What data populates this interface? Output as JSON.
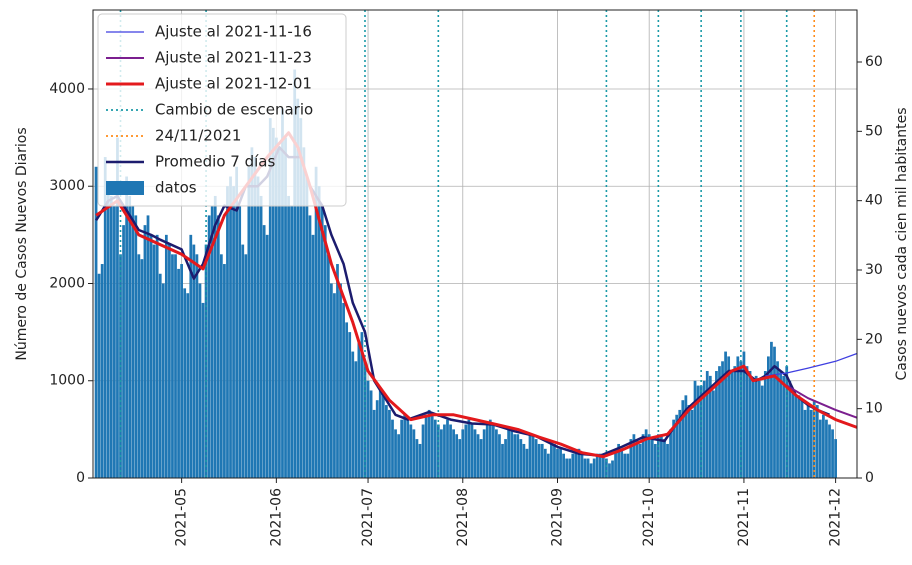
{
  "chart_data": {
    "type": "bar",
    "ylabel": "Número de Casos Nuevos Diarios",
    "y2label": "Casos nuevos cada cien mil habitantes",
    "xlim": [
      "2021-04-02",
      "2021-12-08"
    ],
    "ylim": [
      0,
      4812
    ],
    "y2lim": [
      0,
      67.5
    ],
    "yticks": [
      0,
      1000,
      2000,
      3000,
      4000
    ],
    "y2ticks": [
      0,
      10,
      20,
      30,
      40,
      50,
      60
    ],
    "xticks": [
      {
        "value": "2021-05-01",
        "label": "2021-05"
      },
      {
        "value": "2021-06-01",
        "label": "2021-06"
      },
      {
        "value": "2021-07-01",
        "label": "2021-07"
      },
      {
        "value": "2021-08-01",
        "label": "2021-08"
      },
      {
        "value": "2021-09-01",
        "label": "2021-09"
      },
      {
        "value": "2021-10-01",
        "label": "2021-10"
      },
      {
        "value": "2021-11-01",
        "label": "2021-11"
      },
      {
        "value": "2021-12-01",
        "label": "2021-12"
      }
    ],
    "grid": true,
    "legend": "upper left",
    "bars": {
      "name": "datos",
      "color": "#1f77b4",
      "x": [
        "2021-04-03",
        "2021-04-04",
        "2021-04-05",
        "2021-04-06",
        "2021-04-07",
        "2021-04-08",
        "2021-04-09",
        "2021-04-10",
        "2021-04-11",
        "2021-04-12",
        "2021-04-13",
        "2021-04-14",
        "2021-04-15",
        "2021-04-16",
        "2021-04-17",
        "2021-04-18",
        "2021-04-19",
        "2021-04-20",
        "2021-04-21",
        "2021-04-22",
        "2021-04-23",
        "2021-04-24",
        "2021-04-25",
        "2021-04-26",
        "2021-04-27",
        "2021-04-28",
        "2021-04-29",
        "2021-04-30",
        "2021-05-01",
        "2021-05-02",
        "2021-05-03",
        "2021-05-04",
        "2021-05-05",
        "2021-05-06",
        "2021-05-07",
        "2021-05-08",
        "2021-05-09",
        "2021-05-10",
        "2021-05-11",
        "2021-05-12",
        "2021-05-13",
        "2021-05-14",
        "2021-05-15",
        "2021-05-16",
        "2021-05-17",
        "2021-05-18",
        "2021-05-19",
        "2021-05-20",
        "2021-05-21",
        "2021-05-22",
        "2021-05-23",
        "2021-05-24",
        "2021-05-25",
        "2021-05-26",
        "2021-05-27",
        "2021-05-28",
        "2021-05-29",
        "2021-05-30",
        "2021-05-31",
        "2021-06-01",
        "2021-06-02",
        "2021-06-03",
        "2021-06-04",
        "2021-06-05",
        "2021-06-06",
        "2021-06-07",
        "2021-06-08",
        "2021-06-09",
        "2021-06-10",
        "2021-06-11",
        "2021-06-12",
        "2021-06-13",
        "2021-06-14",
        "2021-06-15",
        "2021-06-16",
        "2021-06-17",
        "2021-06-18",
        "2021-06-19",
        "2021-06-20",
        "2021-06-21",
        "2021-06-22",
        "2021-06-23",
        "2021-06-24",
        "2021-06-25",
        "2021-06-26",
        "2021-06-27",
        "2021-06-28",
        "2021-06-29",
        "2021-06-30",
        "2021-07-01",
        "2021-07-02",
        "2021-07-03",
        "2021-07-04",
        "2021-07-05",
        "2021-07-06",
        "2021-07-07",
        "2021-07-08",
        "2021-07-09",
        "2021-07-10",
        "2021-07-11",
        "2021-07-12",
        "2021-07-13",
        "2021-07-14",
        "2021-07-15",
        "2021-07-16",
        "2021-07-17",
        "2021-07-18",
        "2021-07-19",
        "2021-07-20",
        "2021-07-21",
        "2021-07-22",
        "2021-07-23",
        "2021-07-24",
        "2021-07-25",
        "2021-07-26",
        "2021-07-27",
        "2021-07-28",
        "2021-07-29",
        "2021-07-30",
        "2021-07-31",
        "2021-08-01",
        "2021-08-02",
        "2021-08-03",
        "2021-08-04",
        "2021-08-05",
        "2021-08-06",
        "2021-08-07",
        "2021-08-08",
        "2021-08-09",
        "2021-08-10",
        "2021-08-11",
        "2021-08-12",
        "2021-08-13",
        "2021-08-14",
        "2021-08-15",
        "2021-08-16",
        "2021-08-17",
        "2021-08-18",
        "2021-08-19",
        "2021-08-20",
        "2021-08-21",
        "2021-08-22",
        "2021-08-23",
        "2021-08-24",
        "2021-08-25",
        "2021-08-26",
        "2021-08-27",
        "2021-08-28",
        "2021-08-29",
        "2021-08-30",
        "2021-08-31",
        "2021-09-01",
        "2021-09-02",
        "2021-09-03",
        "2021-09-04",
        "2021-09-05",
        "2021-09-06",
        "2021-09-07",
        "2021-09-08",
        "2021-09-09",
        "2021-09-10",
        "2021-09-11",
        "2021-09-12",
        "2021-09-13",
        "2021-09-14",
        "2021-09-15",
        "2021-09-16",
        "2021-09-17",
        "2021-09-18",
        "2021-09-19",
        "2021-09-20",
        "2021-09-21",
        "2021-09-22",
        "2021-09-23",
        "2021-09-24",
        "2021-09-25",
        "2021-09-26",
        "2021-09-27",
        "2021-09-28",
        "2021-09-29",
        "2021-09-30",
        "2021-10-01",
        "2021-10-02",
        "2021-10-03",
        "2021-10-04",
        "2021-10-05",
        "2021-10-06",
        "2021-10-07",
        "2021-10-08",
        "2021-10-09",
        "2021-10-10",
        "2021-10-11",
        "2021-10-12",
        "2021-10-13",
        "2021-10-14",
        "2021-10-15",
        "2021-10-16",
        "2021-10-17",
        "2021-10-18",
        "2021-10-19",
        "2021-10-20",
        "2021-10-21",
        "2021-10-22",
        "2021-10-23",
        "2021-10-24",
        "2021-10-25",
        "2021-10-26",
        "2021-10-27",
        "2021-10-28",
        "2021-10-29",
        "2021-10-30",
        "2021-10-31",
        "2021-11-01",
        "2021-11-02",
        "2021-11-03",
        "2021-11-04",
        "2021-11-05",
        "2021-11-06",
        "2021-11-07",
        "2021-11-08",
        "2021-11-09",
        "2021-11-10",
        "2021-11-11",
        "2021-11-12",
        "2021-11-13",
        "2021-11-14",
        "2021-11-15",
        "2021-11-16",
        "2021-11-17",
        "2021-11-18",
        "2021-11-19",
        "2021-11-20",
        "2021-11-21",
        "2021-11-22",
        "2021-11-23",
        "2021-11-24",
        "2021-11-25",
        "2021-11-26",
        "2021-11-27",
        "2021-11-28",
        "2021-11-29",
        "2021-11-30",
        "2021-12-01"
      ],
      "values": [
        3200,
        2100,
        2200,
        3300,
        3000,
        2900,
        2800,
        3500,
        2300,
        2600,
        3100,
        2900,
        2800,
        2700,
        2300,
        2250,
        2600,
        2700,
        2500,
        2400,
        2500,
        2100,
        2000,
        2500,
        2400,
        2300,
        2300,
        2150,
        2200,
        1950,
        1900,
        2500,
        2400,
        2300,
        2000,
        1800,
        2400,
        2700,
        2800,
        2900,
        2700,
        2300,
        2200,
        3000,
        3100,
        3000,
        3200,
        2800,
        2400,
        2300,
        3200,
        3400,
        3300,
        3100,
        2900,
        2600,
        2500,
        3700,
        3600,
        3500,
        3400,
        3800,
        3500,
        2900,
        2800,
        4200,
        3900,
        3700,
        3400,
        3100,
        2700,
        2500,
        3200,
        3000,
        2800,
        2600,
        2300,
        2000,
        1900,
        2200,
        2000,
        1800,
        1600,
        1500,
        1300,
        1200,
        1400,
        1500,
        1200,
        1000,
        900,
        700,
        800,
        900,
        850,
        750,
        700,
        600,
        500,
        450,
        600,
        650,
        600,
        550,
        500,
        400,
        350,
        550,
        650,
        700,
        650,
        600,
        550,
        500,
        550,
        600,
        550,
        500,
        450,
        400,
        500,
        550,
        600,
        550,
        500,
        450,
        400,
        500,
        550,
        600,
        550,
        500,
        450,
        350,
        400,
        500,
        500,
        450,
        450,
        400,
        350,
        300,
        450,
        450,
        400,
        350,
        350,
        300,
        250,
        350,
        350,
        300,
        300,
        250,
        200,
        200,
        250,
        250,
        300,
        250,
        200,
        200,
        150,
        200,
        250,
        250,
        250,
        200,
        150,
        180,
        300,
        350,
        300,
        250,
        250,
        400,
        450,
        400,
        350,
        450,
        500,
        450,
        400,
        350,
        450,
        450,
        400,
        350,
        500,
        600,
        650,
        700,
        800,
        850,
        750,
        700,
        1000,
        950,
        950,
        1000,
        1100,
        1050,
        900,
        1100,
        1150,
        1200,
        1300,
        1250,
        1100,
        1150,
        1250,
        1200,
        1300,
        1150,
        1100,
        1000,
        1050,
        1000,
        950,
        1100,
        1250,
        1400,
        1350,
        1200,
        1100,
        1050,
        1150,
        1000,
        900,
        850,
        850,
        800,
        700,
        750,
        700,
        800,
        750,
        600,
        650,
        600,
        550,
        500,
        400
      ]
    },
    "series": [
      {
        "name": "Ajuste al 2021-11-16",
        "color": "#3f3fe0",
        "width": 1.3,
        "x": [
          "2021-11-08",
          "2021-11-15",
          "2021-11-22",
          "2021-12-01",
          "2021-12-08"
        ],
        "values": [
          1050,
          1080,
          1130,
          1200,
          1280
        ]
      },
      {
        "name": "Ajuste al 2021-11-23",
        "color": "#7b1f8f",
        "width": 2,
        "x": [
          "2021-11-15",
          "2021-11-22",
          "2021-12-01",
          "2021-12-08"
        ],
        "values": [
          950,
          820,
          700,
          620
        ]
      },
      {
        "name": "Ajuste al 2021-12-01",
        "color": "#e3191c",
        "width": 3,
        "x": [
          "2021-04-03",
          "2021-04-10",
          "2021-04-17",
          "2021-04-24",
          "2021-05-01",
          "2021-05-08",
          "2021-05-15",
          "2021-05-22",
          "2021-05-29",
          "2021-06-05",
          "2021-06-08",
          "2021-06-12",
          "2021-06-19",
          "2021-06-26",
          "2021-07-01",
          "2021-07-08",
          "2021-07-15",
          "2021-07-22",
          "2021-07-29",
          "2021-08-05",
          "2021-08-12",
          "2021-08-19",
          "2021-08-26",
          "2021-09-02",
          "2021-09-09",
          "2021-09-16",
          "2021-09-23",
          "2021-09-30",
          "2021-10-07",
          "2021-10-14",
          "2021-10-21",
          "2021-10-28",
          "2021-11-01",
          "2021-11-04",
          "2021-11-11",
          "2021-11-18",
          "2021-11-25",
          "2021-12-01",
          "2021-12-08"
        ],
        "values": [
          2700,
          2850,
          2500,
          2400,
          2300,
          2150,
          2700,
          3000,
          3300,
          3550,
          3400,
          3000,
          2200,
          1600,
          1100,
          800,
          600,
          650,
          650,
          600,
          550,
          500,
          420,
          350,
          260,
          220,
          300,
          400,
          450,
          700,
          900,
          1100,
          1150,
          1000,
          1050,
          850,
          700,
          600,
          520
        ]
      },
      {
        "name": "Promedio 7 días",
        "color": "#1c1c6e",
        "width": 2.5,
        "x": [
          "2021-04-03",
          "2021-04-07",
          "2021-04-10",
          "2021-04-14",
          "2021-04-17",
          "2021-04-21",
          "2021-04-24",
          "2021-05-01",
          "2021-05-05",
          "2021-05-08",
          "2021-05-12",
          "2021-05-15",
          "2021-05-19",
          "2021-05-22",
          "2021-05-26",
          "2021-05-29",
          "2021-06-02",
          "2021-06-05",
          "2021-06-09",
          "2021-06-12",
          "2021-06-16",
          "2021-06-19",
          "2021-06-23",
          "2021-06-26",
          "2021-06-30",
          "2021-07-03",
          "2021-07-07",
          "2021-07-10",
          "2021-07-14",
          "2021-07-21",
          "2021-07-28",
          "2021-08-04",
          "2021-08-11",
          "2021-08-18",
          "2021-08-25",
          "2021-09-01",
          "2021-09-08",
          "2021-09-15",
          "2021-09-22",
          "2021-09-29",
          "2021-10-06",
          "2021-10-13",
          "2021-10-20",
          "2021-10-27",
          "2021-11-01",
          "2021-11-05",
          "2021-11-08",
          "2021-11-11",
          "2021-11-15",
          "2021-11-18",
          "2021-11-22",
          "2021-11-25",
          "2021-11-29"
        ],
        "values": [
          2650,
          2850,
          2900,
          2700,
          2550,
          2500,
          2450,
          2350,
          2050,
          2200,
          2600,
          2800,
          2750,
          3000,
          3000,
          3100,
          3400,
          3300,
          3300,
          3000,
          2800,
          2500,
          2200,
          1800,
          1500,
          1000,
          800,
          650,
          600,
          680,
          600,
          560,
          550,
          480,
          430,
          320,
          250,
          230,
          320,
          420,
          380,
          700,
          900,
          1100,
          1100,
          1000,
          1050,
          1150,
          1050,
          850,
          750,
          700,
          650
        ]
      }
    ],
    "vlines": [
      {
        "name": "Cambio de escenario",
        "color": "#1a9aa8",
        "x": [
          "2021-04-11",
          "2021-05-09",
          "2021-06-30",
          "2021-07-24",
          "2021-09-17",
          "2021-10-04",
          "2021-10-18",
          "2021-10-31",
          "2021-11-15"
        ]
      },
      {
        "name": "24/11/2021",
        "color": "#ff8c1a",
        "x": [
          "2021-11-24"
        ]
      }
    ]
  }
}
